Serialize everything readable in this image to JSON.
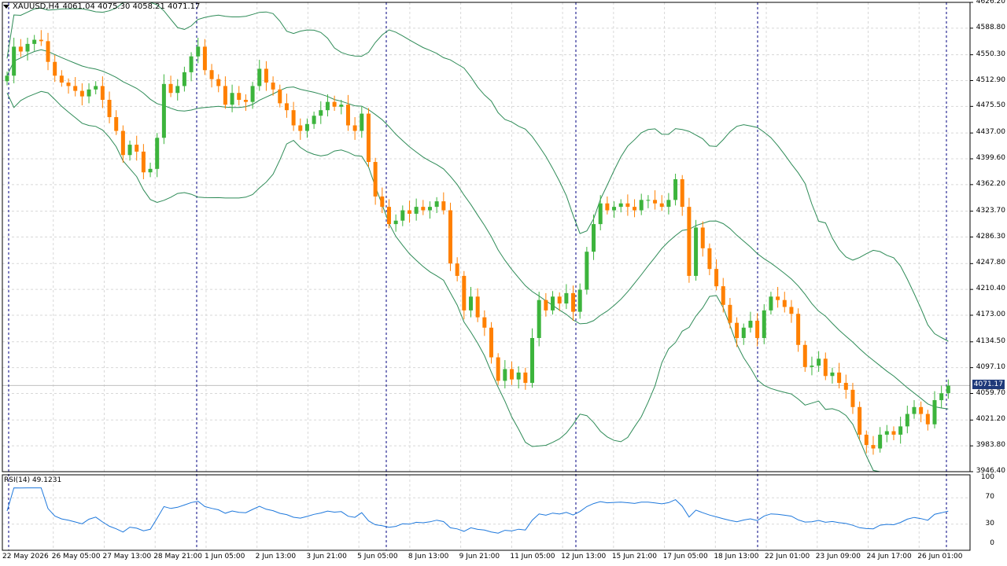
{
  "header": {
    "symbol": "XAUUSD,H4",
    "ohlc": "4061.04 4075.30 4058.21 4071.17"
  },
  "current_price": "4071.17",
  "rsi": {
    "label": "RSI(14) 49.1231",
    "levels": [
      "100",
      "70",
      "30",
      "0"
    ]
  },
  "price_axis": [
    "4626.20",
    "4588.80",
    "4550.30",
    "4512.90",
    "4475.50",
    "4437.00",
    "4399.60",
    "4362.20",
    "4323.70",
    "4286.30",
    "4247.80",
    "4210.40",
    "4173.00",
    "4134.50",
    "4097.10",
    "4059.70",
    "4021.20",
    "3983.80",
    "3946.40"
  ],
  "time_axis": [
    "22 May 2026",
    "26 May 05:00",
    "27 May 13:00",
    "28 May 21:00",
    "1 Jun 05:00",
    "2 Jun 13:00",
    "3 Jun 21:00",
    "5 Jun 05:00",
    "8 Jun 13:00",
    "9 Jun 21:00",
    "11 Jun 05:00",
    "12 Jun 13:00",
    "15 Jun 21:00",
    "17 Jun 05:00",
    "18 Jun 13:00",
    "22 Jun 01:00",
    "23 Jun 09:00",
    "24 Jun 17:00",
    "26 Jun 01:00"
  ],
  "colors": {
    "bull": "#3cb43c",
    "bear": "#ff8000",
    "bands": "#2e8b57",
    "rsi": "#1e78dc",
    "grid": "#d8d8d8",
    "sep": "#000080"
  },
  "chart_data": {
    "type": "candlestick",
    "ylim": [
      3946.4,
      4626.2
    ],
    "closes": [
      4520,
      4562,
      4555,
      4566,
      4572,
      4570,
      4540,
      4520,
      4510,
      4505,
      4498,
      4490,
      4500,
      4505,
      4485,
      4460,
      4440,
      4405,
      4420,
      4410,
      4380,
      4385,
      4430,
      4508,
      4495,
      4505,
      4525,
      4548,
      4562,
      4528,
      4515,
      4505,
      4478,
      4495,
      4485,
      4482,
      4505,
      4530,
      4510,
      4500,
      4480,
      4470,
      4448,
      4440,
      4450,
      4462,
      4470,
      4482,
      4475,
      4478,
      4448,
      4440,
      4465,
      4395,
      4345,
      4330,
      4305,
      4310,
      4325,
      4320,
      4330,
      4325,
      4330,
      4338,
      4325,
      4248,
      4230,
      4180,
      4200,
      4170,
      4155,
      4112,
      4078,
      4095,
      4080,
      4090,
      4075,
      4140,
      4195,
      4180,
      4200,
      4190,
      4205,
      4178,
      4210,
      4265,
      4305,
      4335,
      4325,
      4330,
      4335,
      4330,
      4325,
      4340,
      4340,
      4335,
      4330,
      4340,
      4370,
      4330,
      4230,
      4300,
      4270,
      4240,
      4215,
      4188,
      4162,
      4140,
      4155,
      4165,
      4140,
      4180,
      4200,
      4195,
      4185,
      4175,
      4130,
      4098,
      4100,
      4110,
      4085,
      4090,
      4075,
      4065,
      4040,
      4000,
      3985,
      3980,
      4000,
      4005,
      4000,
      4012,
      4030,
      4040,
      4030,
      4015,
      4050,
      4060,
      4071
    ]
  }
}
